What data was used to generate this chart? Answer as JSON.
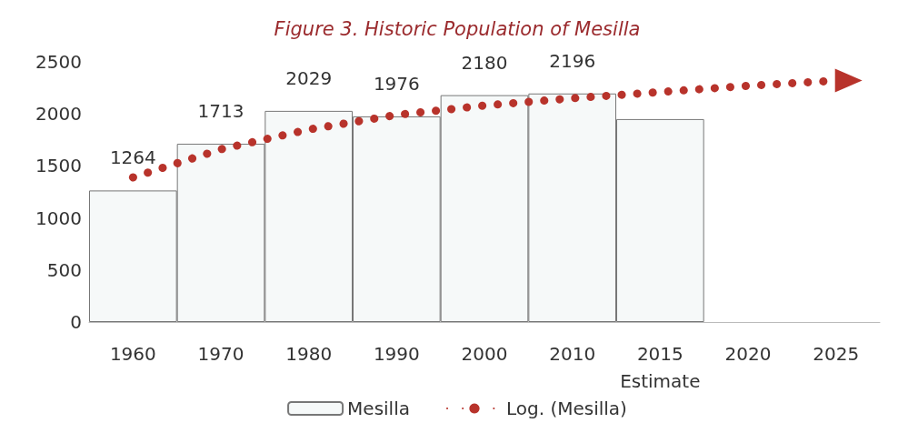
{
  "chart_data": {
    "type": "bar",
    "title": "Figure 3. Historic Population of Mesilla",
    "categories": [
      "1960",
      "1970",
      "1980",
      "1990",
      "2000",
      "2010",
      "2015\nEstimate",
      "2020",
      "2025"
    ],
    "series": [
      {
        "name": "Mesilla",
        "color": "#f6f9f9",
        "values": [
          1264,
          1713,
          2029,
          1976,
          2180,
          2196,
          1950,
          null,
          null
        ],
        "value_labels": [
          "1264",
          "1713",
          "2029",
          "1976",
          "2180",
          "2196",
          null,
          null,
          null
        ]
      },
      {
        "name": "Log. (Mesilla)",
        "type": "line",
        "color": "#b8332b",
        "line_style": "dotted",
        "marker": "none",
        "values": [
          1390,
          1660,
          1850,
          1990,
          2080,
          2150,
          2210,
          2270,
          2320
        ]
      }
    ],
    "ylim": [
      0,
      2500
    ],
    "yticks": [
      0,
      500,
      1000,
      1500,
      2000,
      2500
    ],
    "grid": false,
    "legend": "bottom"
  }
}
